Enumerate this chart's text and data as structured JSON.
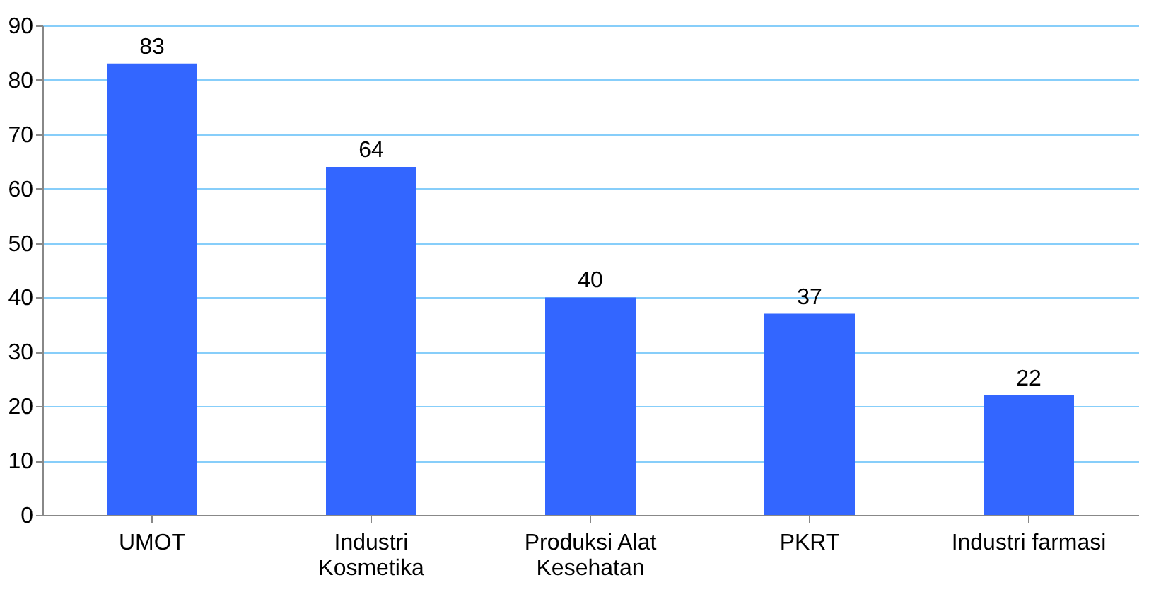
{
  "chart_data": {
    "type": "bar",
    "categories": [
      "UMOT",
      "Industri Kosmetika",
      "Produksi Alat Kesehatan",
      "PKRT",
      "Industri farmasi"
    ],
    "series": [
      {
        "color": "#3366ff",
        "values": [
          83,
          64,
          40,
          37,
          22
        ]
      }
    ],
    "ylim": [
      0,
      90
    ],
    "yticks": [
      0,
      10,
      20,
      30,
      40,
      50,
      60,
      70,
      80,
      90
    ],
    "grid": "y",
    "data_labels": true
  }
}
